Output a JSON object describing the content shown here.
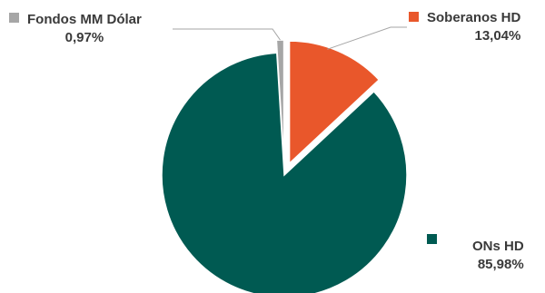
{
  "chart_data": {
    "type": "pie",
    "title": "",
    "legend": "labels next to slices",
    "slices": [
      {
        "name": "Fondos MM Dólar",
        "value": 0.97,
        "label": "0,97%",
        "color": "#a6a6a6",
        "exploded": true
      },
      {
        "name": "Soberanos HD",
        "value": 13.04,
        "label": "13,04%",
        "color": "#e9572b",
        "exploded": true
      },
      {
        "name": "ONs HD",
        "value": 85.98,
        "label": "85,98%",
        "color": "#005a52",
        "exploded": false
      }
    ]
  }
}
